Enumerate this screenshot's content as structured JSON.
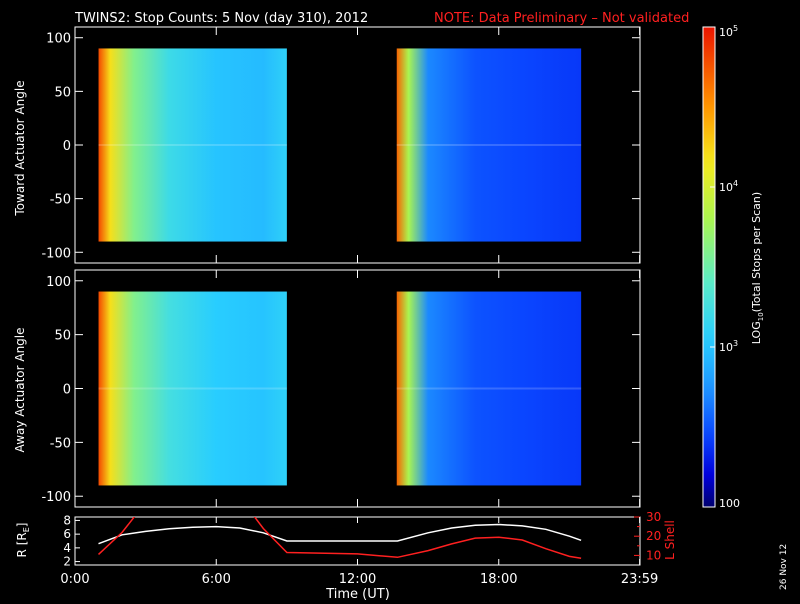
{
  "header": {
    "title": "TWINS2: Stop Counts:  5 Nov (day 310), 2012",
    "note": "NOTE: Data Preliminary – Not validated",
    "note_color": "#ff2020"
  },
  "footer": {
    "date_stamp": "26 Nov 12"
  },
  "chart_data": [
    {
      "type": "heatmap",
      "panel": "toward",
      "ylabel": "Toward Actuator Angle",
      "ylim": [
        -110,
        110
      ],
      "yticks": [
        100,
        50,
        0,
        -50,
        -100
      ],
      "y_data_range": [
        -90,
        90
      ],
      "xlim_hours": [
        0,
        24
      ],
      "segments": [
        {
          "start": "01:00",
          "end": "09:00"
        },
        {
          "start": "13:40",
          "end": "21:30"
        }
      ],
      "log_counts_profile": [
        {
          "t": "01:00",
          "log10": 4.8
        },
        {
          "t": "01:30",
          "log10": 4.2
        },
        {
          "t": "02:30",
          "log10": 3.6
        },
        {
          "t": "04:00",
          "log10": 3.2
        },
        {
          "t": "06:00",
          "log10": 3.0
        },
        {
          "t": "08:00",
          "log10": 2.95
        },
        {
          "t": "09:00",
          "log10": 3.1
        },
        {
          "t": "13:40",
          "log10": 4.7
        },
        {
          "t": "14:10",
          "log10": 3.8
        },
        {
          "t": "15:00",
          "log10": 2.7
        },
        {
          "t": "17:00",
          "log10": 2.5
        },
        {
          "t": "19:00",
          "log10": 2.45
        },
        {
          "t": "21:30",
          "log10": 2.4
        }
      ]
    },
    {
      "type": "heatmap",
      "panel": "away",
      "ylabel": "Away Actuator Angle",
      "ylim": [
        -110,
        110
      ],
      "yticks": [
        100,
        50,
        0,
        -50,
        -100
      ],
      "y_data_range": [
        -90,
        90
      ],
      "xlim_hours": [
        0,
        24
      ],
      "segments": [
        {
          "start": "01:00",
          "end": "09:00"
        },
        {
          "start": "13:40",
          "end": "21:30"
        }
      ],
      "log_counts_profile": [
        {
          "t": "01:00",
          "log10": 4.8
        },
        {
          "t": "01:30",
          "log10": 4.2
        },
        {
          "t": "02:30",
          "log10": 3.6
        },
        {
          "t": "04:00",
          "log10": 3.25
        },
        {
          "t": "06:00",
          "log10": 3.05
        },
        {
          "t": "08:00",
          "log10": 3.0
        },
        {
          "t": "09:00",
          "log10": 3.1
        },
        {
          "t": "13:40",
          "log10": 4.7
        },
        {
          "t": "14:10",
          "log10": 3.8
        },
        {
          "t": "15:00",
          "log10": 2.7
        },
        {
          "t": "17:00",
          "log10": 2.5
        },
        {
          "t": "19:00",
          "log10": 2.45
        },
        {
          "t": "21:30",
          "log10": 2.4
        }
      ]
    },
    {
      "type": "line",
      "panel": "orbit",
      "xlabel": "Time (UT)",
      "x_tick_labels": [
        "0:00",
        "6:00",
        "12:00",
        "18:00",
        "23:59"
      ],
      "x_tick_hours": [
        0,
        6,
        12,
        18,
        23.983
      ],
      "ylabel_left": "R [R",
      "ylabel_left_sub": "E",
      "ylabel_left_end": "]",
      "ylim_left": [
        1.5,
        8.5
      ],
      "yticks_left": [
        8,
        6,
        4,
        2
      ],
      "ylabel_right": "L Shell",
      "ylim_right": [
        5,
        30
      ],
      "yticks_right": [
        30,
        20,
        10
      ],
      "yticks_right_minor": [
        25,
        15
      ],
      "series": [
        {
          "axis": "left",
          "color": "#ffffff",
          "x": [
            1.0,
            2.0,
            3.0,
            4.0,
            5.0,
            6.0,
            7.0,
            8.0,
            9.0,
            13.7,
            15.0,
            16.0,
            17.0,
            18.0,
            19.0,
            20.0,
            21.0,
            21.5
          ],
          "y": [
            4.6,
            5.9,
            6.4,
            6.8,
            7.0,
            7.1,
            6.9,
            6.2,
            5.0,
            5.0,
            6.2,
            6.9,
            7.3,
            7.4,
            7.2,
            6.7,
            5.7,
            5.1
          ]
        },
        {
          "axis": "right",
          "color": "#ff2020",
          "x": [
            1.0,
            2.0,
            2.55,
            7.6,
            8.0,
            9.0,
            12.0,
            13.7,
            15.0,
            16.0,
            17.0,
            18.0,
            19.0,
            20.0,
            21.0,
            21.5
          ],
          "y": [
            10.5,
            22.0,
            30.5,
            30.5,
            24.0,
            11.5,
            10.8,
            9.0,
            12.5,
            16.0,
            19.0,
            19.5,
            18.0,
            13.5,
            9.5,
            8.5
          ]
        }
      ]
    },
    {
      "type": "colorbar",
      "label_prefix": "LOG",
      "label_sub": "10",
      "label_suffix": "(Total Stops per Scan)",
      "range_log10": [
        2,
        5
      ],
      "ticks": [
        {
          "log10": 5,
          "base": "10",
          "exp": "5"
        },
        {
          "log10": 4,
          "base": "10",
          "exp": "4"
        },
        {
          "log10": 3,
          "base": "10",
          "exp": "3"
        },
        {
          "log10": 2,
          "text": "100"
        }
      ]
    }
  ]
}
